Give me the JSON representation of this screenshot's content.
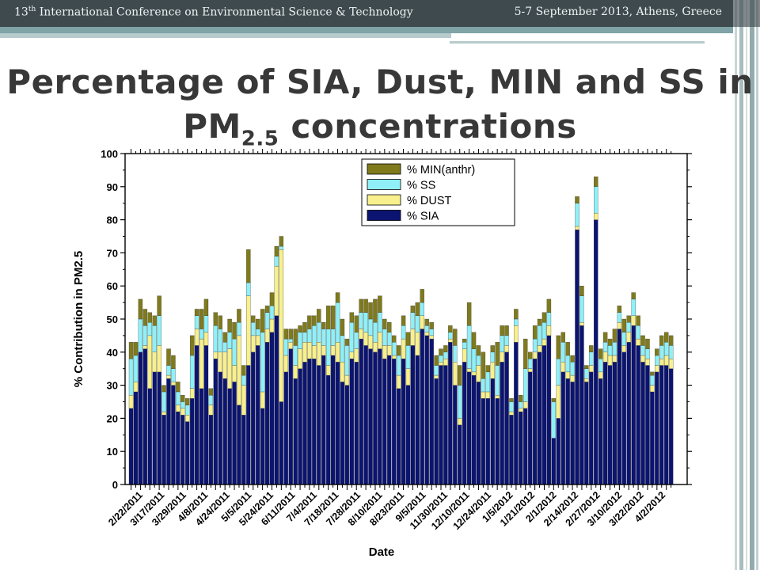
{
  "header": {
    "left_prefix": "13",
    "left_sup": "th",
    "left_rest": " International Conference on Environmental Science & Technology",
    "right": "5-7 September 2013, Athens, Greece"
  },
  "slide": {
    "title_line1": "Percentage of SIA, Dust, MIN and SS in",
    "title_line2_main": "PM",
    "title_line2_sub": "2.5",
    "title_line2_rest": " concentrations"
  },
  "colors": {
    "sia": "#0b1470",
    "dust": "#f7f08c",
    "ss": "#8ff0f7",
    "min": "#7f7a1c",
    "header": "#3f4a4f"
  },
  "chart_data": {
    "type": "bar",
    "stacked": true,
    "xlabel": "Date",
    "ylabel": "% Contribution in PM2.5",
    "ylim": [
      0,
      100
    ],
    "yticks": [
      0,
      10,
      20,
      30,
      40,
      50,
      60,
      70,
      80,
      90,
      100
    ],
    "grid": false,
    "legend": "top-center",
    "legend_order": [
      "% MIN(anthr)",
      "% SS",
      "% DUST",
      "% SIA"
    ],
    "x_tick_labels": [
      "2/22/2011",
      "3/17/2011",
      "3/29/2011",
      "4/8/2011",
      "4/24/2011",
      "5/5/2011",
      "5/24/2011",
      "6/11/2011",
      "7/4/2011",
      "7/18/2011",
      "7/28/2011",
      "8/10/2011",
      "8/23/2011",
      "9/5/2011",
      "11/30/2011",
      "12/10/2011",
      "12/24/2011",
      "1/5/2012",
      "1/21/2012",
      "2/1/2012",
      "2/14/2012",
      "2/27/2012",
      "3/10/2012",
      "3/22/2012",
      "4/2/2012"
    ],
    "series": [
      {
        "name": "% SIA",
        "values": [
          23,
          28,
          40,
          41,
          29,
          34,
          34,
          21,
          32,
          30,
          22,
          21,
          19,
          26,
          42,
          29,
          42,
          21,
          38,
          34,
          32,
          29,
          31,
          24,
          21,
          36,
          40,
          42,
          23,
          43,
          46,
          51,
          25,
          34,
          41,
          32,
          35,
          37,
          38,
          38,
          36,
          39,
          33,
          39,
          37,
          31,
          30,
          38,
          37,
          44,
          42,
          41,
          40,
          41,
          38,
          39,
          38,
          29,
          38,
          30,
          42,
          39,
          47,
          45,
          44,
          32,
          36,
          36,
          43,
          30,
          18,
          37,
          34,
          33,
          31,
          26,
          26,
          32,
          26,
          37,
          40,
          21,
          43,
          22,
          23,
          34,
          38,
          40,
          42,
          45,
          14,
          20,
          34,
          32,
          31,
          77,
          48,
          31,
          34,
          80,
          32,
          37,
          36,
          37,
          47,
          40,
          43,
          48,
          42,
          37,
          36,
          28,
          34,
          36,
          36,
          35
        ]
      },
      {
        "name": "% DUST",
        "values": [
          4,
          3,
          0,
          1,
          16,
          6,
          8,
          1,
          1,
          1,
          2,
          2,
          2,
          3,
          5,
          15,
          4,
          3,
          2,
          6,
          8,
          12,
          5,
          21,
          9,
          21,
          5,
          3,
          5,
          4,
          4,
          15,
          46,
          5,
          2,
          4,
          6,
          6,
          5,
          4,
          7,
          3,
          3,
          3,
          6,
          6,
          3,
          2,
          4,
          3,
          4,
          4,
          3,
          5,
          4,
          3,
          1,
          4,
          6,
          5,
          5,
          7,
          4,
          1,
          1,
          1,
          1,
          2,
          1,
          7,
          2,
          4,
          1,
          1,
          5,
          2,
          2,
          5,
          1,
          3,
          2,
          1,
          5,
          1,
          2,
          1,
          2,
          2,
          2,
          3,
          0,
          10,
          3,
          2,
          2,
          1,
          1,
          1,
          2,
          2,
          2,
          3,
          3,
          2,
          2,
          2,
          3,
          3,
          2,
          2,
          2,
          2,
          2,
          2,
          3,
          3
        ]
      },
      {
        "name": "% SS",
        "values": [
          11,
          8,
          10,
          6,
          4,
          8,
          9,
          6,
          3,
          4,
          4,
          2,
          3,
          10,
          4,
          3,
          5,
          3,
          8,
          7,
          3,
          5,
          8,
          4,
          3,
          4,
          4,
          2,
          18,
          5,
          4,
          3,
          1,
          5,
          1,
          6,
          5,
          3,
          4,
          6,
          6,
          5,
          11,
          5,
          12,
          8,
          9,
          9,
          5,
          5,
          6,
          5,
          6,
          6,
          5,
          4,
          4,
          6,
          4,
          7,
          5,
          5,
          4,
          2,
          2,
          3,
          2,
          2,
          2,
          5,
          10,
          2,
          13,
          7,
          3,
          4,
          6,
          3,
          9,
          5,
          3,
          3,
          2,
          2,
          10,
          3,
          4,
          6,
          5,
          4,
          11,
          8,
          6,
          5,
          4,
          7,
          8,
          3,
          4,
          8,
          4,
          3,
          3,
          4,
          3,
          4,
          3,
          5,
          4,
          3,
          3,
          3,
          3,
          4,
          4,
          4
        ]
      },
      {
        "name": "% MIN(anthr)",
        "values": [
          5,
          4,
          6,
          5,
          3,
          3,
          6,
          2,
          5,
          4,
          3,
          2,
          2,
          6,
          2,
          6,
          5,
          2,
          4,
          4,
          3,
          4,
          5,
          4,
          3,
          10,
          2,
          3,
          7,
          2,
          4,
          3,
          3,
          3,
          3,
          5,
          2,
          3,
          4,
          3,
          4,
          2,
          7,
          7,
          3,
          5,
          2,
          3,
          5,
          4,
          4,
          5,
          7,
          5,
          3,
          3,
          2,
          3,
          3,
          4,
          2,
          4,
          4,
          2,
          2,
          3,
          2,
          2,
          2,
          5,
          6,
          1,
          7,
          5,
          3,
          8,
          2,
          2,
          7,
          3,
          3,
          1,
          3,
          2,
          9,
          2,
          4,
          2,
          3,
          4,
          1,
          7,
          3,
          4,
          2,
          2,
          3,
          1,
          2,
          3,
          3,
          3,
          2,
          4,
          2,
          4,
          2,
          2,
          3,
          3,
          3,
          1,
          2,
          3,
          3,
          3
        ]
      }
    ]
  }
}
